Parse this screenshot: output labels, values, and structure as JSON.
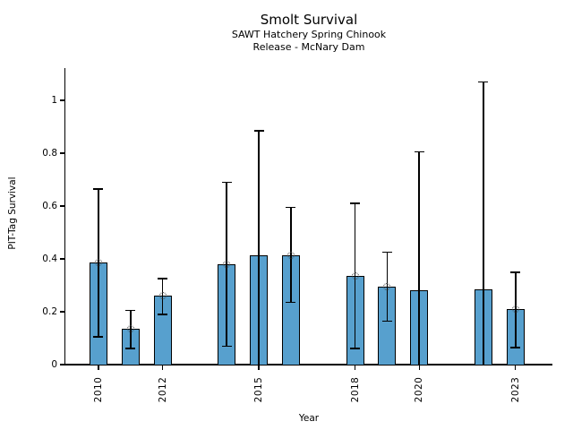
{
  "chart_data": {
    "type": "bar",
    "title": "Smolt Survival",
    "subtitle": [
      "SAWT Hatchery Spring Chinook",
      "Release - McNary Dam"
    ],
    "xlabel": "Year",
    "ylabel": "PIT-Tag Survival",
    "xlim": [
      2008.97,
      2024.15
    ],
    "ylim": [
      0,
      1.122
    ],
    "yticks": [
      0,
      0.2,
      0.4,
      0.6,
      0.8,
      1
    ],
    "ytick_labels": [
      "0",
      "0.2",
      "0.4",
      "0.6",
      "0.8",
      "1"
    ],
    "xticks": [
      2010,
      2012,
      2015,
      2018,
      2020,
      2023
    ],
    "xtick_labels": [
      "2010",
      "2012",
      "2015",
      "2018",
      "2020",
      "2023"
    ],
    "grid": false,
    "legend": "none",
    "bar_color": "#57A0CE",
    "bar_edge_color": "#000000",
    "error_color": "#000000",
    "marker_style": "open-circle",
    "series": [
      {
        "year": 2010,
        "value": 0.385,
        "ci_low": 0.105,
        "ci_high": 0.665,
        "marker": true
      },
      {
        "year": 2011,
        "value": 0.135,
        "ci_low": 0.06,
        "ci_high": 0.205,
        "marker": true
      },
      {
        "year": 2012,
        "value": 0.26,
        "ci_low": 0.19,
        "ci_high": 0.325,
        "marker": true
      },
      {
        "year": 2014,
        "value": 0.38,
        "ci_low": 0.07,
        "ci_high": 0.69,
        "marker": true
      },
      {
        "year": 2015,
        "value": 0.415,
        "ci_low": 0.0,
        "ci_high": 0.885,
        "marker": false
      },
      {
        "year": 2016,
        "value": 0.415,
        "ci_low": 0.235,
        "ci_high": 0.595,
        "marker": true
      },
      {
        "year": 2018,
        "value": 0.335,
        "ci_low": 0.06,
        "ci_high": 0.61,
        "marker": true
      },
      {
        "year": 2019,
        "value": 0.295,
        "ci_low": 0.165,
        "ci_high": 0.425,
        "marker": true
      },
      {
        "year": 2020,
        "value": 0.28,
        "ci_low": 0.0,
        "ci_high": 0.805,
        "marker": false
      },
      {
        "year": 2022,
        "value": 0.285,
        "ci_low": 0.0,
        "ci_high": 1.07,
        "marker": false
      },
      {
        "year": 2023,
        "value": 0.21,
        "ci_low": 0.065,
        "ci_high": 0.35,
        "marker": true
      }
    ]
  }
}
